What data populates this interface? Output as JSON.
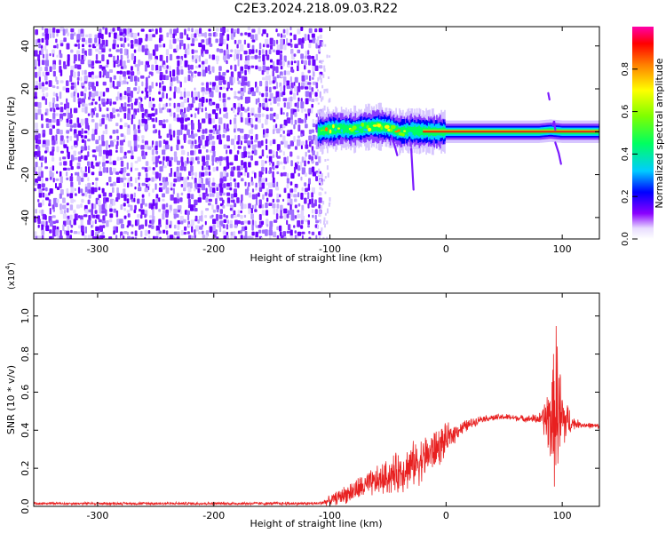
{
  "title": "C2E3.2024.218.09.03.R22",
  "colors": {
    "signal": "#ff0000",
    "noise": "#6a00ff",
    "line": "#e82020"
  },
  "chart_data": [
    {
      "type": "heatmap",
      "xlabel": "Height of straight line (km)",
      "ylabel": "Frequency (Hz)",
      "xlim": [
        -355,
        132
      ],
      "ylim": [
        -50,
        49
      ],
      "xticks": [
        -300,
        -200,
        -100,
        0,
        100
      ],
      "yticks": [
        -40,
        -20,
        0,
        20,
        40
      ],
      "xtick_labels": [
        "-300",
        "-200",
        "-100",
        "0",
        "100"
      ],
      "ytick_labels": [
        "-40",
        "-20",
        "0",
        "20",
        "40"
      ],
      "noise_region_x": [
        -355,
        -110
      ],
      "signal_track": {
        "x": [
          -110,
          -100,
          -90,
          -80,
          -70,
          -60,
          -50,
          -40,
          -30,
          -20,
          -10,
          0,
          20,
          40,
          60,
          80,
          90,
          100,
          132
        ],
        "freq": [
          0,
          1,
          1.5,
          1,
          2,
          2.5,
          2,
          0,
          0.5,
          0.2,
          0,
          0,
          0,
          0,
          0,
          0,
          0.5,
          0,
          0
        ]
      },
      "colorbar": {
        "label": "Normalized spectral amplitude",
        "ticks": [
          0.0,
          0.2,
          0.4,
          0.6,
          0.8
        ],
        "tick_labels": [
          "0.0",
          "0.2",
          "0.4",
          "0.6",
          "0.8"
        ],
        "range": [
          0,
          1
        ]
      }
    },
    {
      "type": "line",
      "xlabel": "Height of straight line (km)",
      "ylabel": "SNR (10 * v/v)",
      "y_multiplier": "(x10",
      "y_multiplier_exp": "4",
      "y_multiplier_close": ")",
      "xlim": [
        -355,
        132
      ],
      "ylim": [
        0,
        1.12
      ],
      "xticks": [
        -300,
        -200,
        -100,
        0,
        100
      ],
      "yticks": [
        0.0,
        0.2,
        0.4,
        0.6,
        0.8,
        1.0
      ],
      "xtick_labels": [
        "-300",
        "-200",
        "-100",
        "0",
        "100"
      ],
      "ytick_labels": [
        "0.0",
        "0.2",
        "0.4",
        "0.6",
        "0.8",
        "1.0"
      ],
      "envelope": {
        "x": [
          -355,
          -110,
          -100,
          -80,
          -60,
          -40,
          -20,
          -5,
          10,
          30,
          50,
          70,
          82,
          88,
          92,
          95,
          98,
          102,
          108,
          115,
          132
        ],
        "mid": [
          0.015,
          0.015,
          0.03,
          0.08,
          0.13,
          0.18,
          0.25,
          0.32,
          0.4,
          0.46,
          0.47,
          0.46,
          0.46,
          0.46,
          0.45,
          0.55,
          0.45,
          0.45,
          0.44,
          0.43,
          0.42
        ],
        "amp": [
          0.008,
          0.01,
          0.03,
          0.07,
          0.09,
          0.13,
          0.14,
          0.12,
          0.05,
          0.02,
          0.02,
          0.02,
          0.04,
          0.22,
          0.35,
          0.55,
          0.35,
          0.18,
          0.05,
          0.02,
          0.015
        ]
      }
    }
  ]
}
